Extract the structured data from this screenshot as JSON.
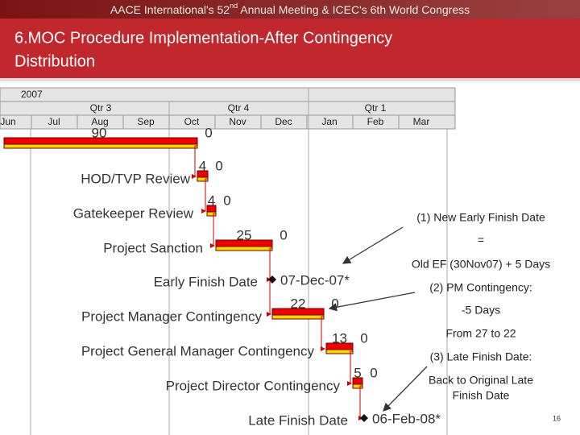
{
  "header": {
    "banner": [
      "AACE International's 52",
      "nd",
      " Annual Meeting & ICEC's 6th World Congress"
    ],
    "title": [
      "6.MOC Procedure Implementation-After Contingency",
      "Distribution"
    ]
  },
  "timeline": {
    "year": "2007",
    "quarters": [
      "Qtr 3",
      "Qtr 4",
      "Qtr 1"
    ],
    "months": [
      "Jun",
      "Jul",
      "Aug",
      "Sep",
      "Oct",
      "Nov",
      "Dec",
      "Jan",
      "Feb",
      "Mar"
    ]
  },
  "tasks": [
    {
      "duration": "90",
      "float": "0"
    },
    {
      "name": "HOD/TVP Review",
      "duration": "4",
      "float": "0"
    },
    {
      "name": "Gatekeeper Review",
      "duration": "4",
      "float": "0"
    },
    {
      "name": "Project Sanction",
      "duration": "25",
      "float": "0"
    },
    {
      "name": "Early Finish Date",
      "date": "07-Dec-07*"
    },
    {
      "name": "Project Manager Contingency",
      "duration": "22",
      "float": "0"
    },
    {
      "name": "Project General Manager Contingency",
      "duration": "13",
      "float": "0"
    },
    {
      "name": "Project Director Contingency",
      "duration": "5",
      "float": "0"
    },
    {
      "name": "Late Finish Date",
      "date": "06-Feb-08*"
    }
  ],
  "notes": [
    "(1) New Early Finish Date",
    "=",
    "Old EF (30Nov07) + 5 Days",
    "(2) PM Contingency:",
    "-5 Days",
    "From 27 to 22",
    "(3) Late Finish Date:",
    "Back to Original Late",
    "Finish Date"
  ],
  "page_number": "16"
}
